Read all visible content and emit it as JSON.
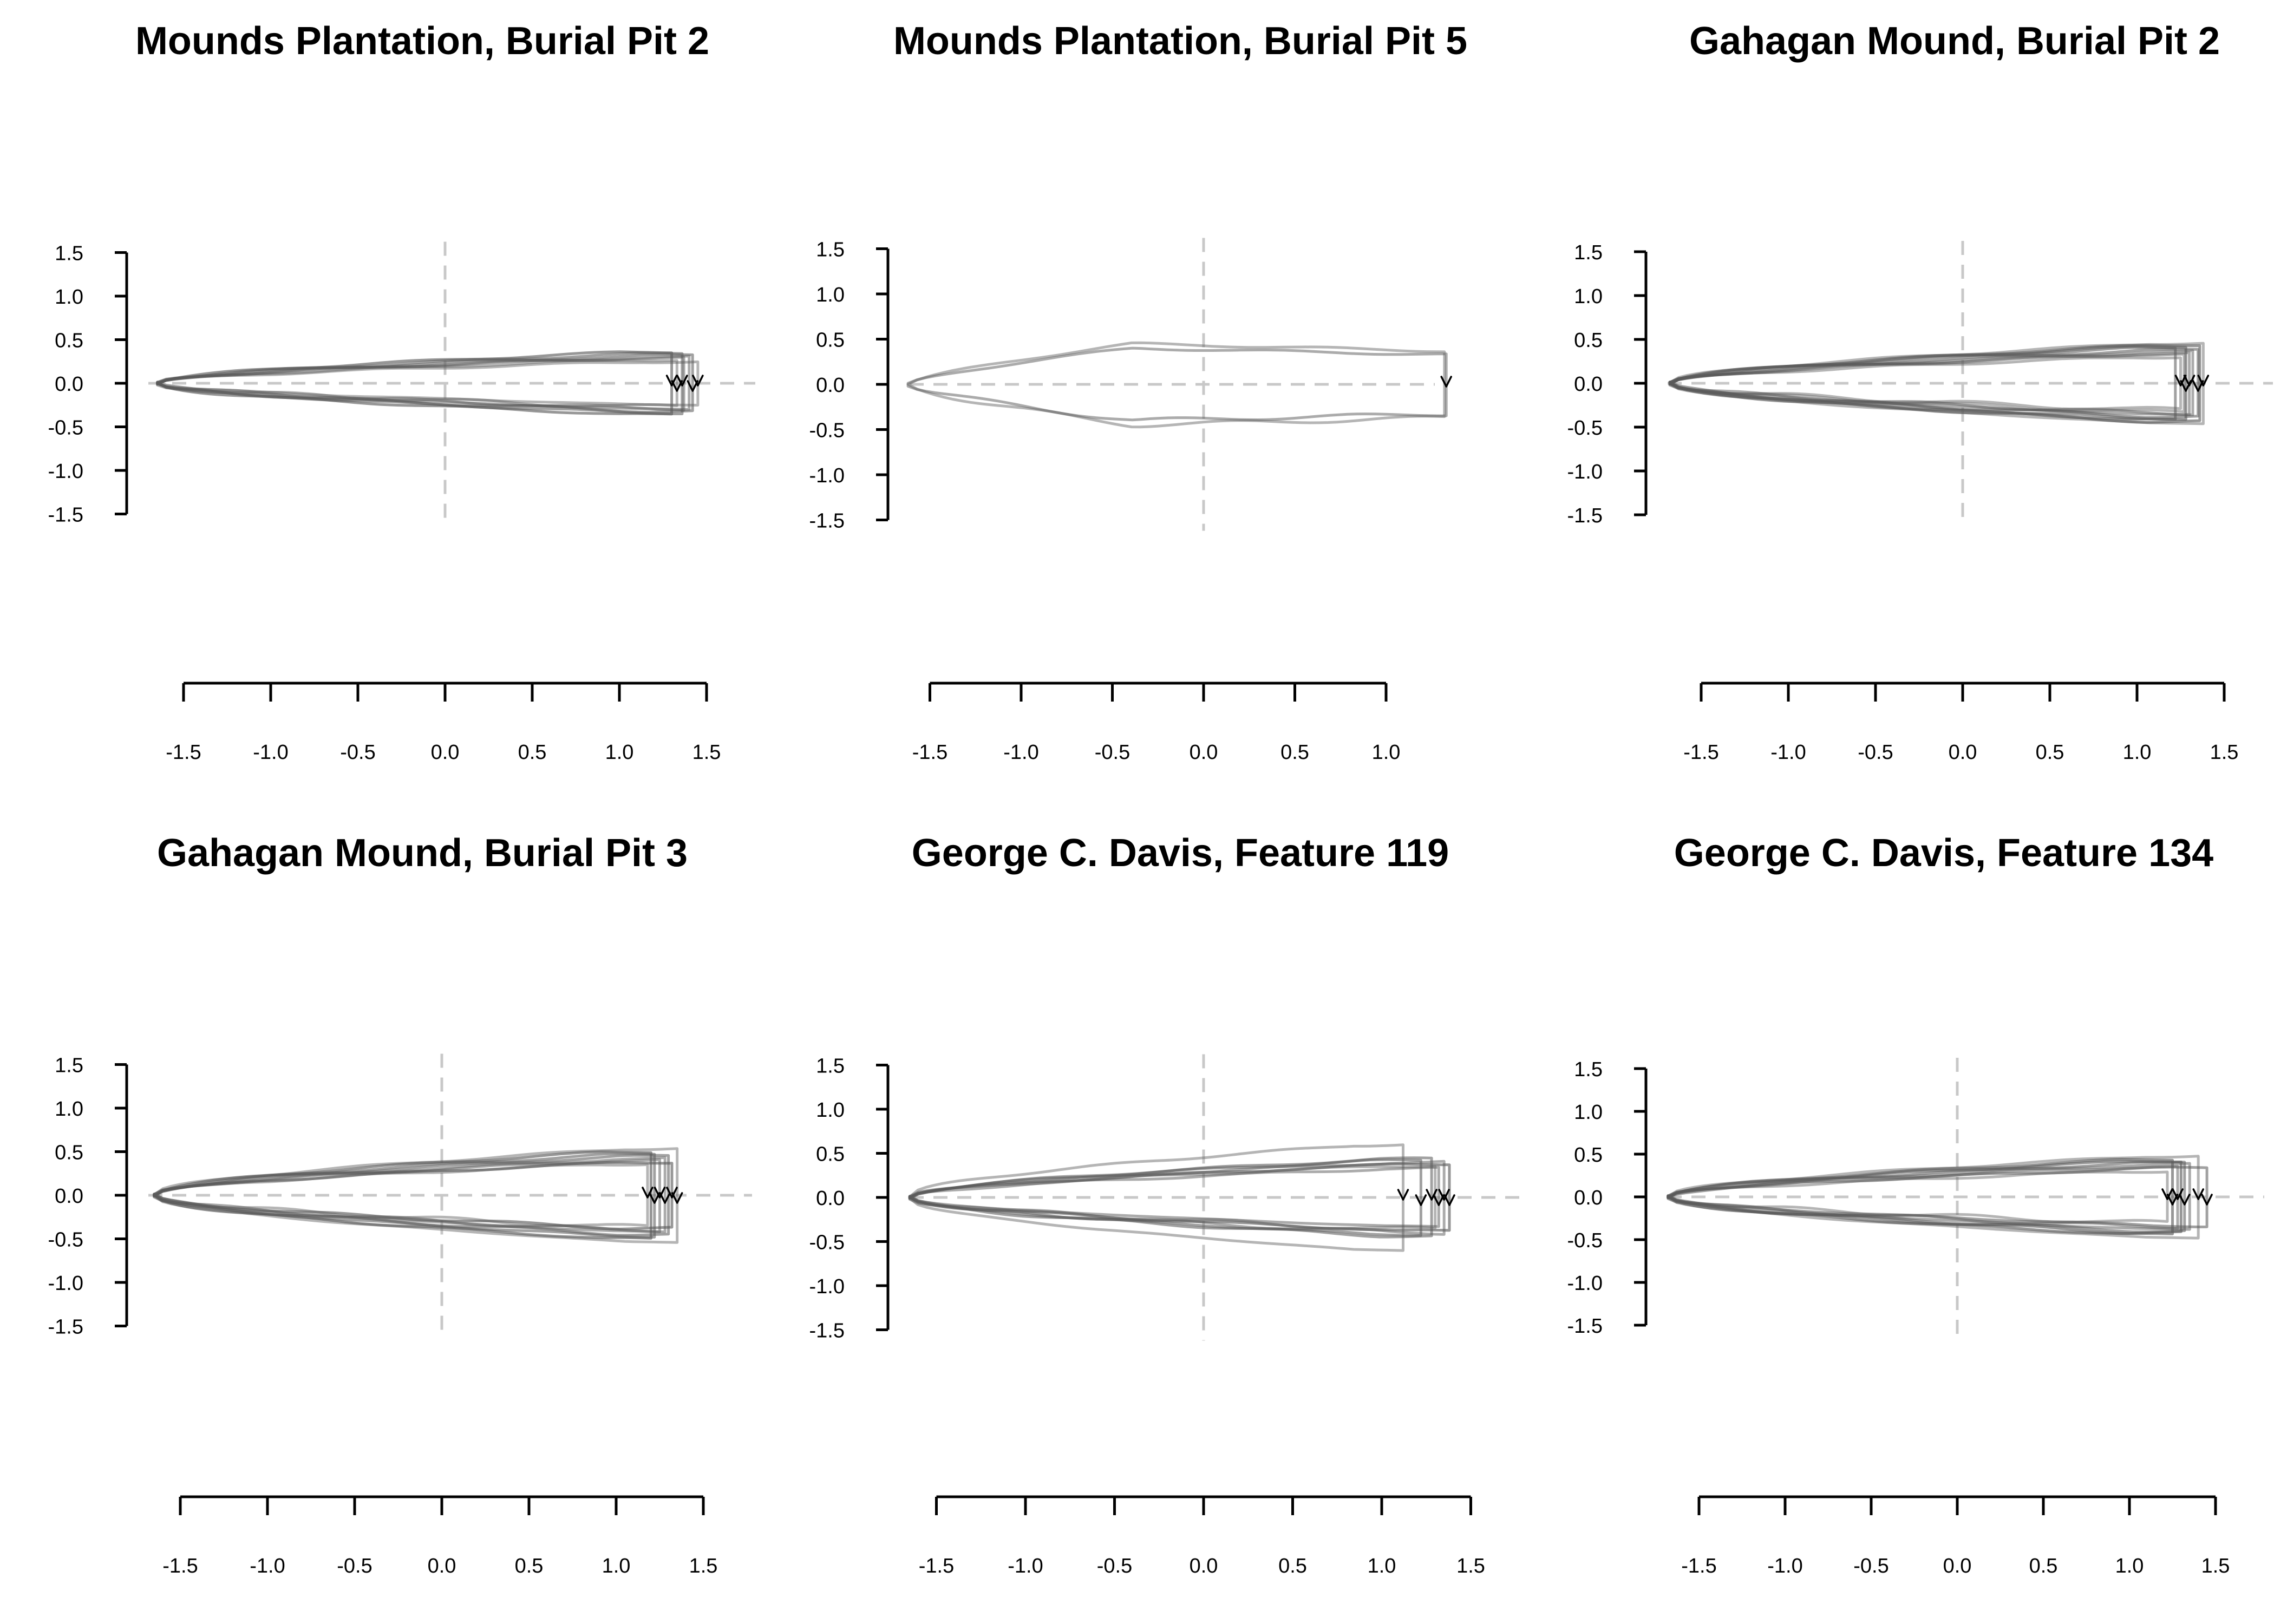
{
  "chart_data": [
    {
      "type": "line",
      "title": "Mounds Plantation, Burial Pit 2",
      "xlabel": "",
      "ylabel": "",
      "xlim": [
        -1.5,
        1.5
      ],
      "ylim": [
        -1.5,
        1.5
      ],
      "xticks": [
        -1.5,
        -1.0,
        -0.5,
        0.0,
        0.5,
        1.0,
        1.5
      ],
      "yticks": [
        -1.5,
        -1.0,
        -0.5,
        0.0,
        0.5,
        1.0,
        1.5
      ],
      "xtick_labels": [
        "-1.5",
        "-1.0",
        "-0.5",
        "0.0",
        "0.5",
        "1.0",
        "1.5"
      ],
      "ytick_labels": [
        "-1.5",
        "-1.0",
        "-0.5",
        "0.0",
        "0.5",
        "1.0",
        "1.5"
      ],
      "reference_lines": {
        "x": 0,
        "y": 0,
        "style": "dashed",
        "color": "#c8c8c8"
      },
      "outline_color": "#5a5a5a",
      "outline_tip_x": -1.65,
      "outlines": [
        {
          "w": 0.27,
          "r": 1.33
        },
        {
          "w": 0.29,
          "r": 1.37
        },
        {
          "w": 0.32,
          "r": 1.42
        },
        {
          "w": 0.36,
          "r": 1.3
        },
        {
          "w": 0.25,
          "r": 1.45
        },
        {
          "w": 0.3,
          "r": 1.4
        },
        {
          "w": 0.34,
          "r": 1.36
        }
      ],
      "tip_markers_x": [
        1.3,
        1.33,
        1.36,
        1.42,
        1.45
      ]
    },
    {
      "type": "line",
      "title": "Mounds Plantation, Burial Pit 5",
      "xlabel": "",
      "ylabel": "",
      "xlim": [
        -1.5,
        1.0
      ],
      "ylim": [
        -1.5,
        1.5
      ],
      "xticks": [
        -1.5,
        -1.0,
        -0.5,
        0.0,
        0.5,
        1.0
      ],
      "yticks": [
        -1.5,
        -1.0,
        -0.5,
        0.0,
        0.5,
        1.0,
        1.5
      ],
      "xtick_labels": [
        "-1.5",
        "-1.0",
        "-0.5",
        "0.0",
        "0.5",
        "1.0"
      ],
      "ytick_labels": [
        "-1.5",
        "-1.0",
        "-0.5",
        "0.0",
        "0.5",
        "1.0",
        "1.5"
      ],
      "reference_lines": {
        "x": 0,
        "y": 0,
        "style": "dashed",
        "color": "#c8c8c8"
      },
      "outline_color": "#5a5a5a",
      "outline_tip_x": -1.62,
      "outlines": [
        {
          "w": 0.45,
          "r": 1.32,
          "bulge": true
        },
        {
          "w": 0.4,
          "r": 1.33,
          "bulge": true
        }
      ],
      "tip_markers_x": [
        1.33
      ]
    },
    {
      "type": "line",
      "title": "Gahagan Mound, Burial Pit 2",
      "xlabel": "",
      "ylabel": "",
      "xlim": [
        -1.5,
        1.5
      ],
      "ylim": [
        -1.5,
        1.5
      ],
      "xticks": [
        -1.5,
        -1.0,
        -0.5,
        0.0,
        0.5,
        1.0,
        1.5
      ],
      "yticks": [
        -1.5,
        -1.0,
        -0.5,
        0.0,
        0.5,
        1.0,
        1.5
      ],
      "xtick_labels": [
        "-1.5",
        "-1.0",
        "-0.5",
        "0.0",
        "0.5",
        "1.0",
        "1.5"
      ],
      "ytick_labels": [
        "-1.5",
        "-1.0",
        "-0.5",
        "0.0",
        "0.5",
        "1.0",
        "1.5"
      ],
      "reference_lines": {
        "x": 0,
        "y": 0,
        "style": "dashed",
        "color": "#c8c8c8"
      },
      "outline_color": "#5a5a5a",
      "outline_tip_x": -1.68,
      "outlines": [
        {
          "w": 0.3,
          "r": 1.25
        },
        {
          "w": 0.34,
          "r": 1.3
        },
        {
          "w": 0.38,
          "r": 1.35
        },
        {
          "w": 0.42,
          "r": 1.28
        },
        {
          "w": 0.46,
          "r": 1.38
        },
        {
          "w": 0.36,
          "r": 1.32
        },
        {
          "w": 0.4,
          "r": 1.22
        },
        {
          "w": 0.44,
          "r": 1.36
        },
        {
          "w": 0.33,
          "r": 1.27
        }
      ],
      "tip_markers_x": [
        1.25,
        1.28,
        1.3,
        1.35,
        1.38
      ]
    },
    {
      "type": "line",
      "title": "Gahagan Mound, Burial Pit 3",
      "xlabel": "",
      "ylabel": "",
      "xlim": [
        -1.5,
        1.5
      ],
      "ylim": [
        -1.5,
        1.5
      ],
      "xticks": [
        -1.5,
        -1.0,
        -0.5,
        0.0,
        0.5,
        1.0,
        1.5
      ],
      "yticks": [
        -1.5,
        -1.0,
        -0.5,
        0.0,
        0.5,
        1.0,
        1.5
      ],
      "xtick_labels": [
        "-1.5",
        "-1.0",
        "-0.5",
        "0.0",
        "0.5",
        "1.0",
        "1.5"
      ],
      "ytick_labels": [
        "-1.5",
        "-1.0",
        "-0.5",
        "0.0",
        "0.5",
        "1.0",
        "1.5"
      ],
      "reference_lines": {
        "x": 0,
        "y": 0,
        "style": "dashed",
        "color": "#c8c8c8"
      },
      "outline_color": "#5a5a5a",
      "outline_tip_x": -1.65,
      "outlines": [
        {
          "w": 0.36,
          "r": 1.18
        },
        {
          "w": 0.4,
          "r": 1.25
        },
        {
          "w": 0.45,
          "r": 1.3
        },
        {
          "w": 0.5,
          "r": 1.2
        },
        {
          "w": 0.54,
          "r": 1.35
        },
        {
          "w": 0.42,
          "r": 1.28
        },
        {
          "w": 0.47,
          "r": 1.22
        },
        {
          "w": 0.38,
          "r": 1.32
        }
      ],
      "tip_markers_x": [
        1.18,
        1.22,
        1.25,
        1.28,
        1.32,
        1.35
      ]
    },
    {
      "type": "line",
      "title": "George C. Davis, Feature 119",
      "xlabel": "",
      "ylabel": "",
      "xlim": [
        -1.5,
        1.5
      ],
      "ylim": [
        -1.5,
        1.5
      ],
      "xticks": [
        -1.5,
        -1.0,
        -0.5,
        0.0,
        0.5,
        1.0,
        1.5
      ],
      "yticks": [
        -1.5,
        -1.0,
        -0.5,
        0.0,
        0.5,
        1.0,
        1.5
      ],
      "xtick_labels": [
        "-1.5",
        "-1.0",
        "-0.5",
        "0.0",
        "0.5",
        "1.0",
        "1.5"
      ],
      "ytick_labels": [
        "-1.5",
        "-1.0",
        "-0.5",
        "0.0",
        "0.5",
        "1.0",
        "1.5"
      ],
      "reference_lines": {
        "x": 0,
        "y": 0,
        "style": "dashed",
        "color": "#c8c8c8"
      },
      "outline_color": "#5a5a5a",
      "outline_tip_x": -1.65,
      "outlines": [
        {
          "w": 0.36,
          "r": 1.3
        },
        {
          "w": 0.4,
          "r": 1.35
        },
        {
          "w": 0.44,
          "r": 1.28
        },
        {
          "w": 0.38,
          "r": 1.38
        },
        {
          "w": 0.6,
          "r": 1.12
        },
        {
          "w": 0.33,
          "r": 1.32
        },
        {
          "w": 0.42,
          "r": 1.22
        }
      ],
      "tip_markers_x": [
        1.12,
        1.22,
        1.28,
        1.32,
        1.35,
        1.38
      ]
    },
    {
      "type": "line",
      "title": "George C. Davis, Feature 134",
      "xlabel": "",
      "ylabel": "",
      "xlim": [
        -1.5,
        1.5
      ],
      "ylim": [
        -1.5,
        1.5
      ],
      "xticks": [
        -1.5,
        -1.0,
        -0.5,
        0.0,
        0.5,
        1.0,
        1.5
      ],
      "yticks": [
        -1.5,
        -1.0,
        -0.5,
        0.0,
        0.5,
        1.0,
        1.5
      ],
      "xtick_labels": [
        "-1.5",
        "-1.0",
        "-0.5",
        "0.0",
        "0.5",
        "1.0",
        "1.5"
      ],
      "ytick_labels": [
        "-1.5",
        "-1.0",
        "-0.5",
        "0.0",
        "0.5",
        "1.0",
        "1.5"
      ],
      "reference_lines": {
        "x": 0,
        "y": 0,
        "style": "dashed",
        "color": "#c8c8c8"
      },
      "outline_color": "#5a5a5a",
      "outline_tip_x": -1.68,
      "outlines": [
        {
          "w": 0.3,
          "r": 1.22
        },
        {
          "w": 0.35,
          "r": 1.28
        },
        {
          "w": 0.4,
          "r": 1.32
        },
        {
          "w": 0.44,
          "r": 1.25
        },
        {
          "w": 0.48,
          "r": 1.4
        },
        {
          "w": 0.38,
          "r": 1.35
        },
        {
          "w": 0.34,
          "r": 1.45
        },
        {
          "w": 0.42,
          "r": 1.3
        }
      ],
      "tip_markers_x": [
        1.22,
        1.25,
        1.28,
        1.32,
        1.4,
        1.45
      ]
    }
  ]
}
